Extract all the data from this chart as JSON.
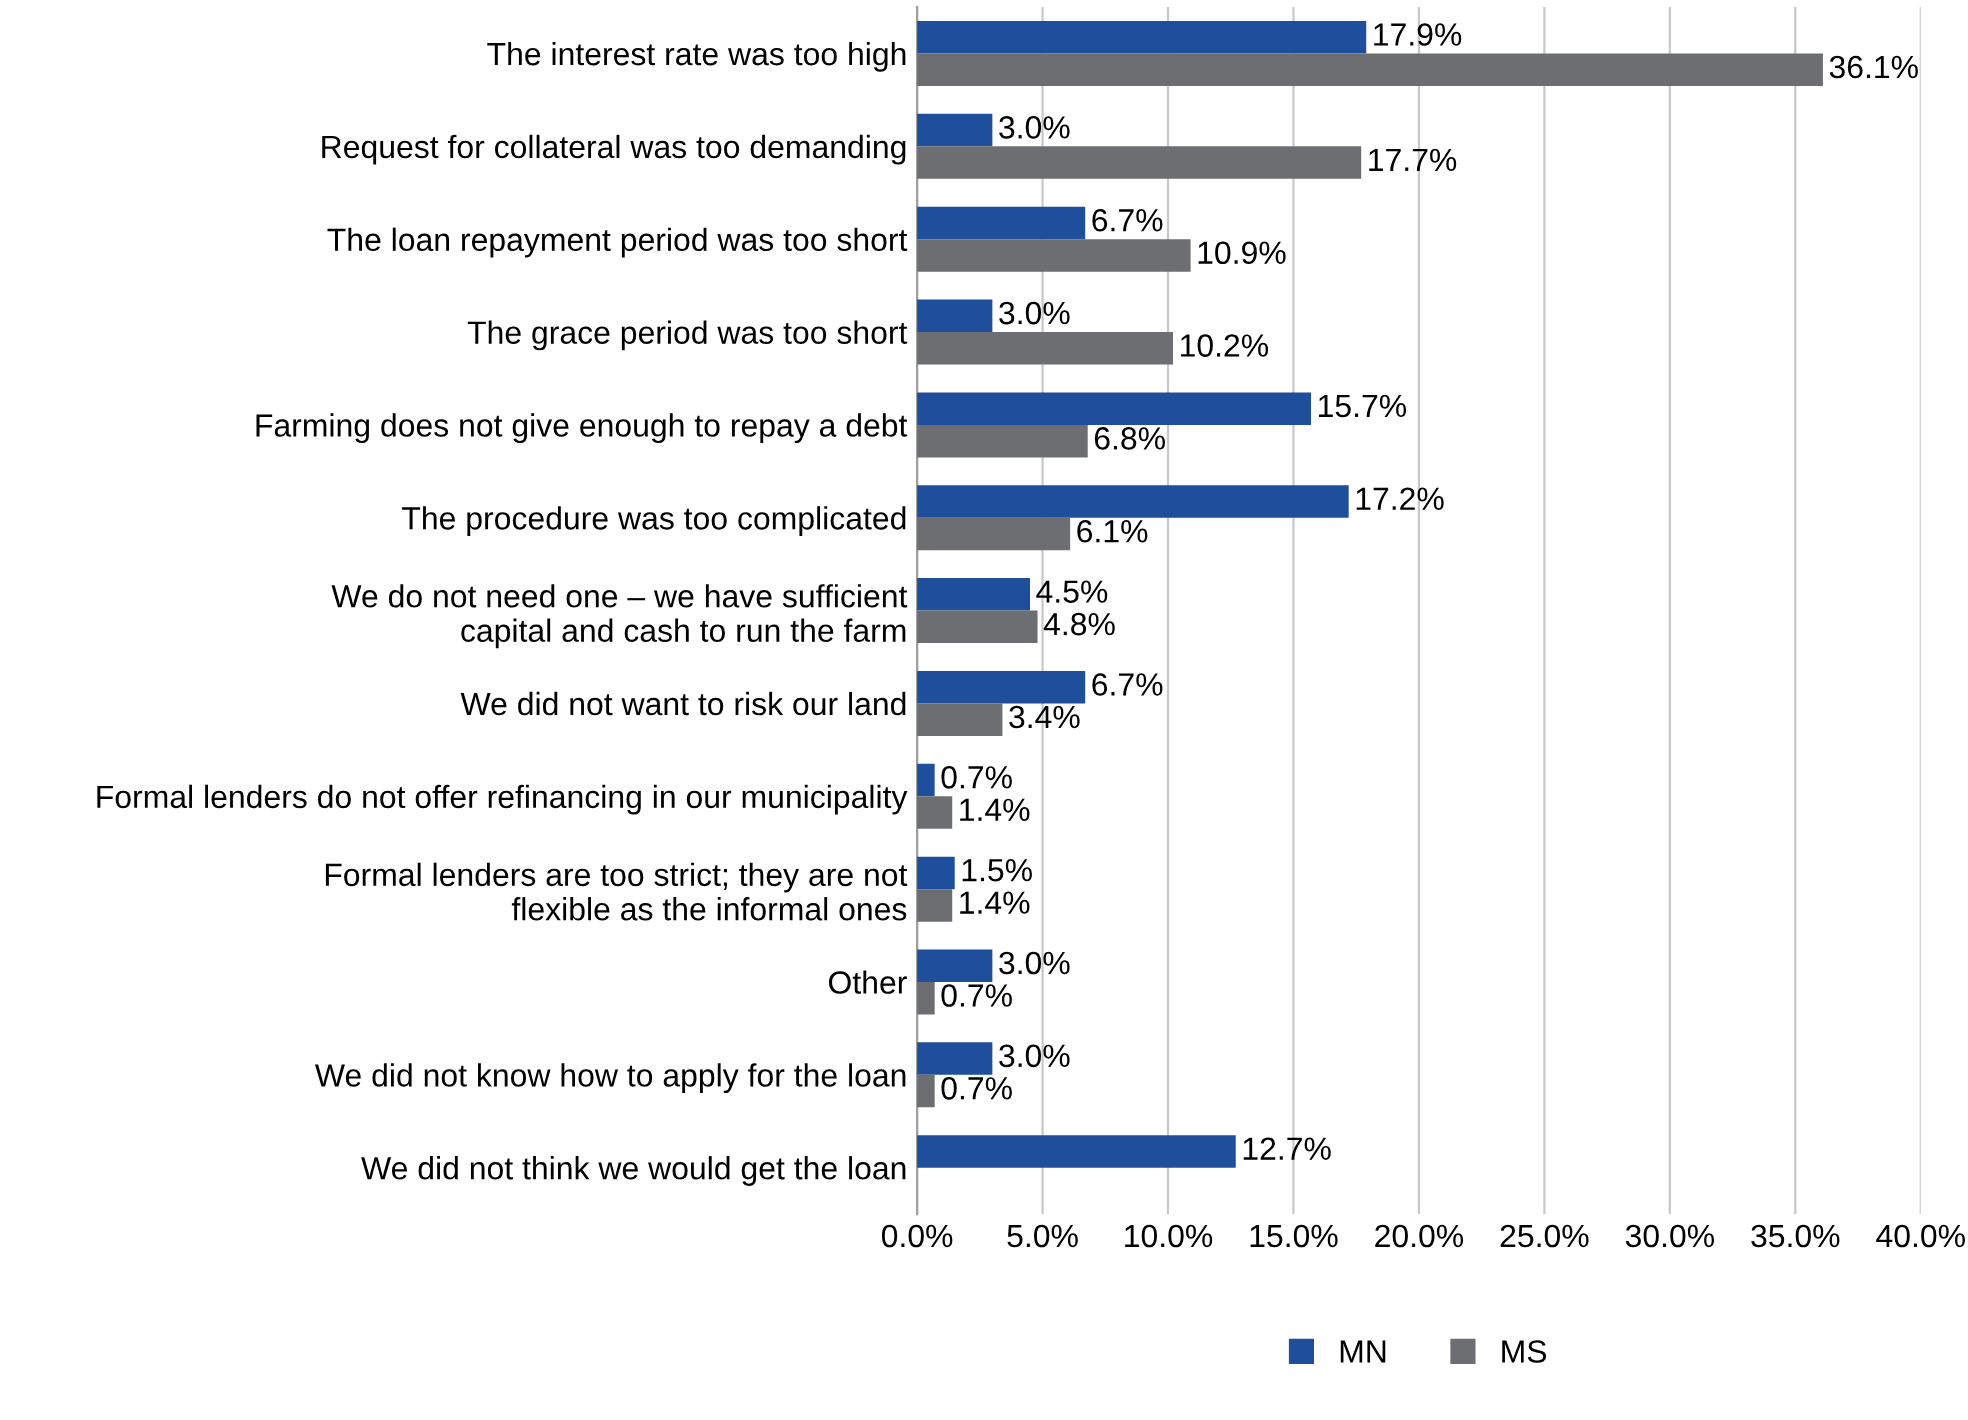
{
  "chart_data": {
    "type": "bar",
    "orientation": "horizontal",
    "categories": [
      "The interest rate was too high",
      "Request for collateral was too demanding",
      "The loan repayment period was too short",
      "The grace period was too short",
      "Farming does not give enough to repay a debt",
      "The procedure was too complicated",
      "We do not need one – we have sufficient\ncapital and cash to run the farm",
      "We did not want to risk our land",
      "Formal lenders do not offer refinancing in our municipality",
      "Formal lenders are too strict; they are not\nflexible as the informal ones",
      "Other",
      "We did not know how to apply for the loan",
      "We did not think we would get the loan"
    ],
    "series": [
      {
        "name": "MN",
        "color": "#1f4e9c",
        "values": [
          17.9,
          3.0,
          6.7,
          3.0,
          15.7,
          17.2,
          4.5,
          6.7,
          0.7,
          1.5,
          3.0,
          3.0,
          12.7
        ],
        "value_labels": [
          "17.9%",
          "3.0%",
          "6.7%",
          "3.0%",
          "15.7%",
          "17.2%",
          "4.5%",
          "6.7%",
          "0.7%",
          "1.5%",
          "3.0%",
          "3.0%",
          "12.7%"
        ]
      },
      {
        "name": "MS",
        "color": "#6d6e71",
        "values": [
          36.1,
          17.7,
          10.9,
          10.2,
          6.8,
          6.1,
          4.8,
          3.4,
          1.4,
          1.4,
          0.7,
          0.7,
          null
        ],
        "value_labels": [
          "36.1%",
          "17.7%",
          "10.9%",
          "10.2%",
          "6.8%",
          "6.1%",
          "4.8%",
          "3.4%",
          "1.4%",
          "1.4%",
          "0.7%",
          "0.7%",
          null
        ]
      }
    ],
    "xlim": [
      0,
      40
    ],
    "xticks": [
      {
        "value": 0,
        "label": "0.0%"
      },
      {
        "value": 5,
        "label": "5.0%"
      },
      {
        "value": 10,
        "label": "10.0%"
      },
      {
        "value": 15,
        "label": "15.0%"
      },
      {
        "value": 20,
        "label": "20.0%"
      },
      {
        "value": 25,
        "label": "25.0%"
      },
      {
        "value": 30,
        "label": "30.0%"
      },
      {
        "value": 35,
        "label": "35.0%"
      },
      {
        "value": 40,
        "label": "40.0%"
      }
    ],
    "grid": "x",
    "legend": "bottom"
  }
}
